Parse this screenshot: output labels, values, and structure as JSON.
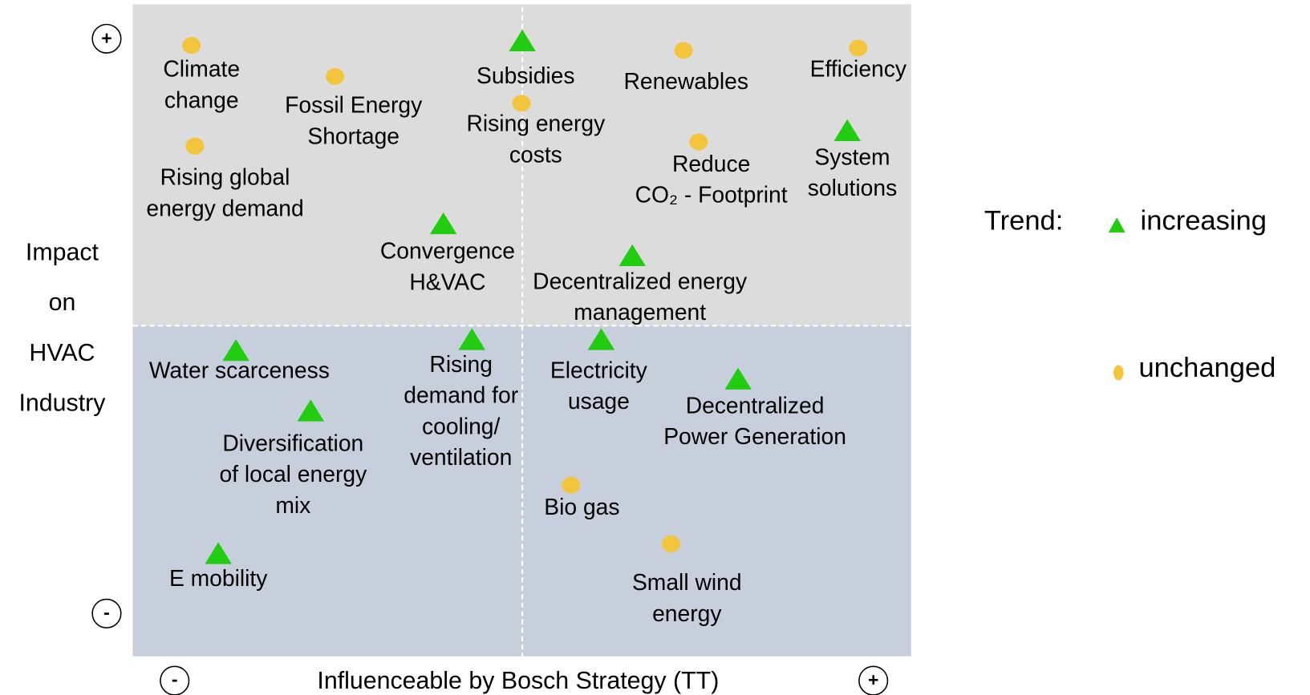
{
  "colors": {
    "triangle": "#22cc11",
    "circle": "#f2c53d",
    "upper": "#dcdcdc",
    "lower": "#c8cfdc"
  },
  "axes": {
    "y_label_lines": [
      "Impact",
      "on",
      "HVAC",
      "Industry"
    ],
    "x_label": "Influenceable by Bosch Strategy (TT)",
    "y_plus": "+",
    "y_minus": "-",
    "x_minus": "-",
    "x_plus": "+"
  },
  "legend": {
    "title": "Trend:",
    "increasing": "increasing",
    "unchanged": "unchanged"
  },
  "items": [
    {
      "label_lines": [
        "Climate",
        "change"
      ],
      "marker": "circle"
    },
    {
      "label_lines": [
        "Fossil Energy",
        "Shortage"
      ],
      "marker": "circle"
    },
    {
      "label_lines": [
        "Rising global",
        "energy demand"
      ],
      "marker": "circle"
    },
    {
      "label_lines": [
        "Subsidies"
      ],
      "marker": "triangle"
    },
    {
      "label_lines": [
        "Rising energy",
        "costs"
      ],
      "marker": "circle"
    },
    {
      "label_lines": [
        "Renewables"
      ],
      "marker": "circle"
    },
    {
      "label_lines": [
        "Efficiency"
      ],
      "marker": "circle"
    },
    {
      "label_lines": [
        "Reduce",
        "CO₂ - Footprint"
      ],
      "marker": "circle"
    },
    {
      "label_lines": [
        "System",
        "solutions"
      ],
      "marker": "triangle"
    },
    {
      "label_lines": [
        "Convergence",
        "H&VAC"
      ],
      "marker": "triangle"
    },
    {
      "label_lines": [
        "Decentralized energy",
        "management"
      ],
      "marker": "triangle"
    },
    {
      "label_lines": [
        "Water scarceness"
      ],
      "marker": "triangle"
    },
    {
      "label_lines": [
        "Rising",
        "demand for",
        "cooling/",
        "ventilation"
      ],
      "marker": "triangle"
    },
    {
      "label_lines": [
        "Electricity",
        "usage"
      ],
      "marker": "triangle"
    },
    {
      "label_lines": [
        "Decentralized",
        "Power Generation"
      ],
      "marker": "triangle"
    },
    {
      "label_lines": [
        "Diversification",
        "of local energy",
        "mix"
      ],
      "marker": "triangle"
    },
    {
      "label_lines": [
        "Bio gas"
      ],
      "marker": "circle"
    },
    {
      "label_lines": [
        "Small wind",
        "energy"
      ],
      "marker": "circle"
    },
    {
      "label_lines": [
        "E mobility"
      ],
      "marker": "triangle"
    }
  ]
}
